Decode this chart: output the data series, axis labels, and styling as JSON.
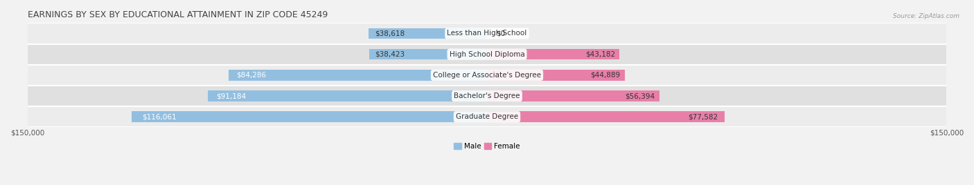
{
  "title": "EARNINGS BY SEX BY EDUCATIONAL ATTAINMENT IN ZIP CODE 45249",
  "source": "Source: ZipAtlas.com",
  "categories": [
    "Less than High School",
    "High School Diploma",
    "College or Associate's Degree",
    "Bachelor's Degree",
    "Graduate Degree"
  ],
  "male_values": [
    38618,
    38423,
    84286,
    91184,
    116061
  ],
  "female_values": [
    0,
    43182,
    44889,
    56394,
    77582
  ],
  "male_color": "#92BFE0",
  "female_color": "#E87FA8",
  "bar_height": 0.52,
  "xlim": 150000,
  "title_fontsize": 9,
  "label_fontsize": 7.5,
  "value_fontsize": 7.5,
  "tick_fontsize": 7.5,
  "row_colors": [
    "#ececec",
    "#e0e0e0"
  ],
  "fig_bg": "#f2f2f2"
}
